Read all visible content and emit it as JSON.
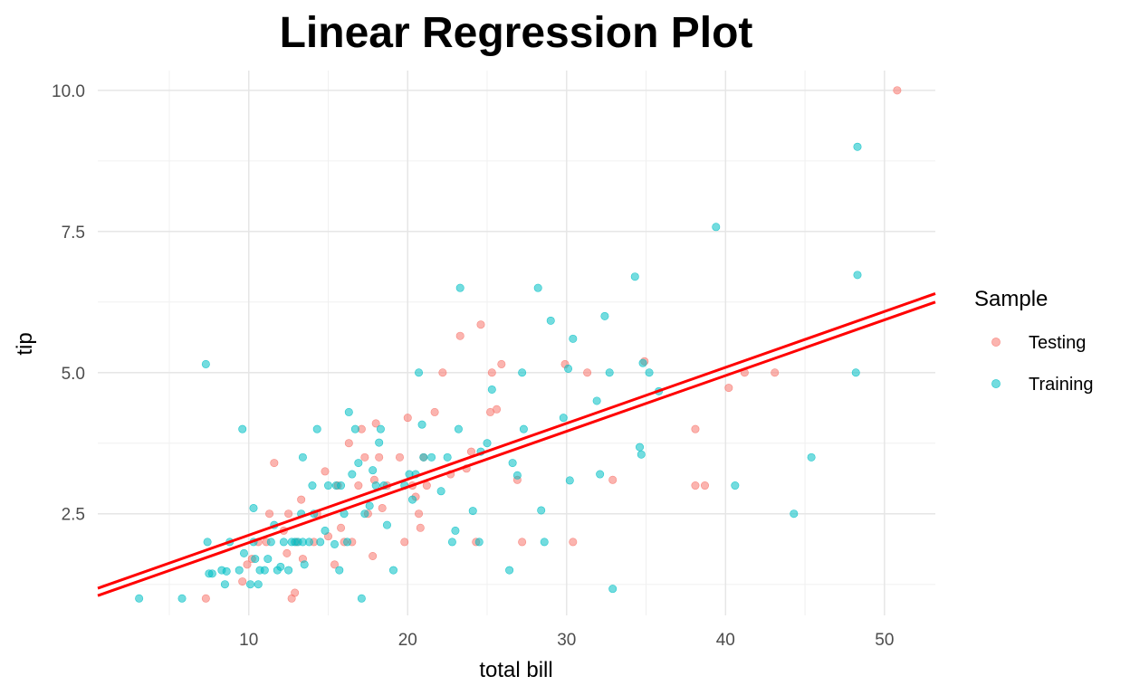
{
  "chart_data": {
    "type": "scatter",
    "title": "Linear Regression Plot",
    "xlabel": "total bill",
    "ylabel": "tip",
    "xlim": [
      0.5,
      53.2
    ],
    "ylim": [
      0.7,
      10.35
    ],
    "x_ticks": [
      10,
      20,
      30,
      40,
      50
    ],
    "x_tick_labels": [
      "10",
      "20",
      "30",
      "40",
      "50"
    ],
    "y_ticks": [
      2.5,
      5.0,
      7.5,
      10.0
    ],
    "y_tick_labels": [
      "2.5",
      "5.0",
      "7.5",
      "10.0"
    ],
    "grid": true,
    "legend": {
      "title": "Sample",
      "position": "right"
    },
    "series": [
      {
        "name": "Testing",
        "color": "#F8766D",
        "points": [
          [
            7.3,
            1.0
          ],
          [
            9.6,
            1.3
          ],
          [
            9.9,
            1.6
          ],
          [
            10.2,
            1.7
          ],
          [
            10.6,
            2.0
          ],
          [
            11.1,
            2.0
          ],
          [
            11.3,
            2.5
          ],
          [
            11.6,
            3.4
          ],
          [
            12.2,
            2.2
          ],
          [
            12.4,
            1.8
          ],
          [
            12.5,
            2.5
          ],
          [
            12.7,
            1.0
          ],
          [
            12.9,
            1.1
          ],
          [
            13.0,
            2.0
          ],
          [
            13.3,
            2.75
          ],
          [
            13.4,
            1.7
          ],
          [
            14.1,
            2.0
          ],
          [
            14.3,
            2.5
          ],
          [
            14.8,
            3.25
          ],
          [
            15.0,
            2.1
          ],
          [
            15.4,
            1.6
          ],
          [
            15.6,
            3.0
          ],
          [
            15.8,
            2.25
          ],
          [
            16.0,
            2.0
          ],
          [
            16.3,
            3.75
          ],
          [
            16.5,
            2.0
          ],
          [
            16.9,
            3.0
          ],
          [
            17.1,
            4.0
          ],
          [
            17.3,
            3.5
          ],
          [
            17.5,
            2.5
          ],
          [
            17.8,
            1.75
          ],
          [
            17.9,
            3.1
          ],
          [
            18.0,
            4.1
          ],
          [
            18.2,
            3.5
          ],
          [
            18.4,
            2.6
          ],
          [
            18.7,
            3.0
          ],
          [
            19.5,
            3.5
          ],
          [
            19.8,
            2.0
          ],
          [
            20.0,
            4.2
          ],
          [
            20.3,
            3.0
          ],
          [
            20.5,
            2.8
          ],
          [
            20.7,
            2.5
          ],
          [
            20.8,
            2.25
          ],
          [
            21.0,
            3.5
          ],
          [
            21.2,
            3.0
          ],
          [
            21.7,
            4.3
          ],
          [
            22.2,
            5.0
          ],
          [
            22.7,
            3.2
          ],
          [
            23.3,
            5.65
          ],
          [
            23.7,
            3.3
          ],
          [
            24.0,
            3.6
          ],
          [
            24.3,
            2.0
          ],
          [
            24.6,
            5.85
          ],
          [
            25.2,
            4.3
          ],
          [
            25.3,
            5.0
          ],
          [
            25.6,
            4.35
          ],
          [
            25.9,
            5.15
          ],
          [
            26.9,
            3.1
          ],
          [
            27.2,
            2.0
          ],
          [
            29.9,
            5.15
          ],
          [
            30.4,
            2.0
          ],
          [
            31.3,
            5.0
          ],
          [
            32.9,
            3.1
          ],
          [
            34.9,
            5.2
          ],
          [
            38.1,
            4.0
          ],
          [
            38.1,
            3.0
          ],
          [
            38.7,
            3.0
          ],
          [
            40.2,
            4.73
          ],
          [
            41.2,
            5.0
          ],
          [
            43.1,
            5.0
          ],
          [
            50.8,
            10.0
          ]
        ]
      },
      {
        "name": "Training",
        "color": "#00BFC4",
        "points": [
          [
            3.1,
            1.0
          ],
          [
            5.8,
            1.0
          ],
          [
            7.3,
            5.15
          ],
          [
            7.4,
            2.0
          ],
          [
            7.5,
            1.44
          ],
          [
            7.7,
            1.44
          ],
          [
            8.3,
            1.5
          ],
          [
            8.5,
            1.25
          ],
          [
            8.6,
            1.48
          ],
          [
            8.8,
            2.0
          ],
          [
            9.4,
            1.5
          ],
          [
            9.6,
            4.0
          ],
          [
            9.7,
            1.8
          ],
          [
            10.1,
            1.25
          ],
          [
            10.3,
            2.0
          ],
          [
            10.3,
            2.6
          ],
          [
            10.4,
            1.7
          ],
          [
            10.6,
            1.25
          ],
          [
            10.7,
            1.5
          ],
          [
            11.0,
            1.5
          ],
          [
            11.2,
            1.7
          ],
          [
            11.4,
            2.0
          ],
          [
            11.6,
            2.3
          ],
          [
            11.8,
            1.5
          ],
          [
            12.0,
            1.56
          ],
          [
            12.2,
            2.0
          ],
          [
            12.5,
            1.5
          ],
          [
            12.7,
            2.0
          ],
          [
            12.9,
            2.0
          ],
          [
            13.1,
            2.0
          ],
          [
            13.3,
            2.5
          ],
          [
            13.4,
            2.0
          ],
          [
            13.4,
            3.5
          ],
          [
            13.5,
            1.6
          ],
          [
            13.8,
            2.0
          ],
          [
            14.0,
            3.0
          ],
          [
            14.1,
            2.5
          ],
          [
            14.3,
            4.0
          ],
          [
            14.5,
            2.0
          ],
          [
            14.8,
            2.2
          ],
          [
            15.0,
            3.0
          ],
          [
            15.4,
            1.96
          ],
          [
            15.5,
            3.0
          ],
          [
            15.7,
            1.5
          ],
          [
            15.8,
            3.0
          ],
          [
            16.0,
            2.5
          ],
          [
            16.2,
            2.0
          ],
          [
            16.3,
            4.3
          ],
          [
            16.5,
            3.2
          ],
          [
            16.7,
            4.0
          ],
          [
            16.9,
            3.4
          ],
          [
            17.1,
            1.0
          ],
          [
            17.3,
            2.5
          ],
          [
            17.6,
            2.64
          ],
          [
            17.8,
            3.27
          ],
          [
            18.0,
            3.0
          ],
          [
            18.2,
            3.76
          ],
          [
            18.3,
            4.0
          ],
          [
            18.5,
            3.0
          ],
          [
            18.7,
            2.3
          ],
          [
            19.1,
            1.5
          ],
          [
            19.8,
            3.0
          ],
          [
            20.1,
            3.2
          ],
          [
            20.3,
            2.75
          ],
          [
            20.5,
            3.2
          ],
          [
            20.7,
            5.0
          ],
          [
            20.9,
            4.08
          ],
          [
            21.0,
            3.5
          ],
          [
            21.5,
            3.5
          ],
          [
            22.1,
            2.9
          ],
          [
            22.5,
            3.5
          ],
          [
            22.8,
            2.0
          ],
          [
            23.0,
            2.2
          ],
          [
            23.2,
            4.0
          ],
          [
            23.3,
            6.5
          ],
          [
            24.1,
            2.55
          ],
          [
            24.5,
            2.0
          ],
          [
            24.6,
            3.6
          ],
          [
            25.0,
            3.75
          ],
          [
            25.3,
            4.7
          ],
          [
            26.4,
            1.5
          ],
          [
            26.6,
            3.4
          ],
          [
            26.9,
            3.18
          ],
          [
            27.2,
            5.0
          ],
          [
            27.3,
            4.0
          ],
          [
            28.2,
            6.5
          ],
          [
            28.4,
            2.56
          ],
          [
            28.6,
            2.0
          ],
          [
            29.0,
            5.92
          ],
          [
            29.8,
            4.2
          ],
          [
            30.1,
            5.07
          ],
          [
            30.4,
            5.6
          ],
          [
            30.2,
            3.09
          ],
          [
            31.9,
            4.5
          ],
          [
            32.1,
            3.2
          ],
          [
            32.4,
            6.0
          ],
          [
            32.7,
            5.0
          ],
          [
            32.9,
            1.17
          ],
          [
            34.3,
            6.7
          ],
          [
            34.6,
            3.68
          ],
          [
            34.7,
            3.55
          ],
          [
            34.8,
            5.17
          ],
          [
            35.2,
            5.0
          ],
          [
            35.8,
            4.67
          ],
          [
            39.4,
            7.58
          ],
          [
            40.6,
            3.0
          ],
          [
            44.3,
            2.5
          ],
          [
            45.4,
            3.5
          ],
          [
            48.2,
            5.0
          ],
          [
            48.3,
            6.73
          ],
          [
            48.3,
            9.0
          ]
        ]
      }
    ],
    "fit_lines": [
      {
        "color": "#FF0000",
        "x": [
          0.5,
          53.2
        ],
        "y": [
          1.18,
          6.4
        ]
      },
      {
        "color": "#FF0000",
        "x": [
          0.5,
          53.2
        ],
        "y": [
          1.05,
          6.25
        ]
      }
    ]
  }
}
